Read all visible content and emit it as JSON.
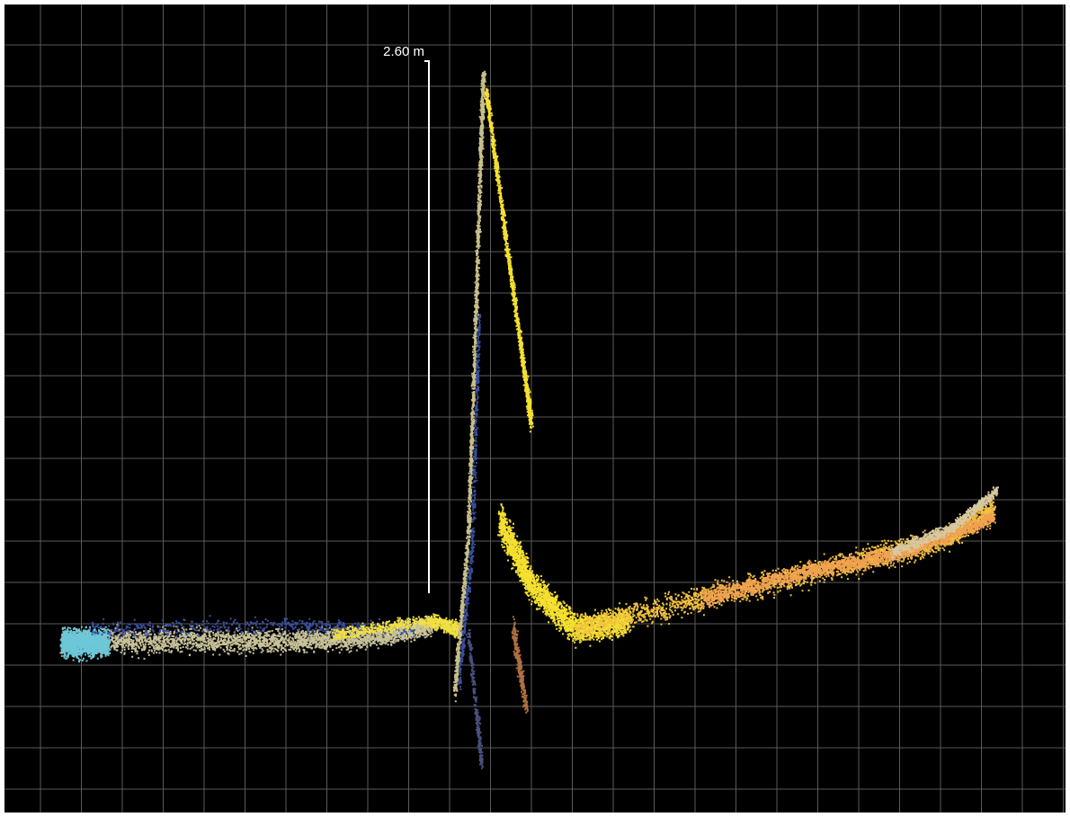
{
  "measurement": {
    "label": "2.60 m"
  }
}
